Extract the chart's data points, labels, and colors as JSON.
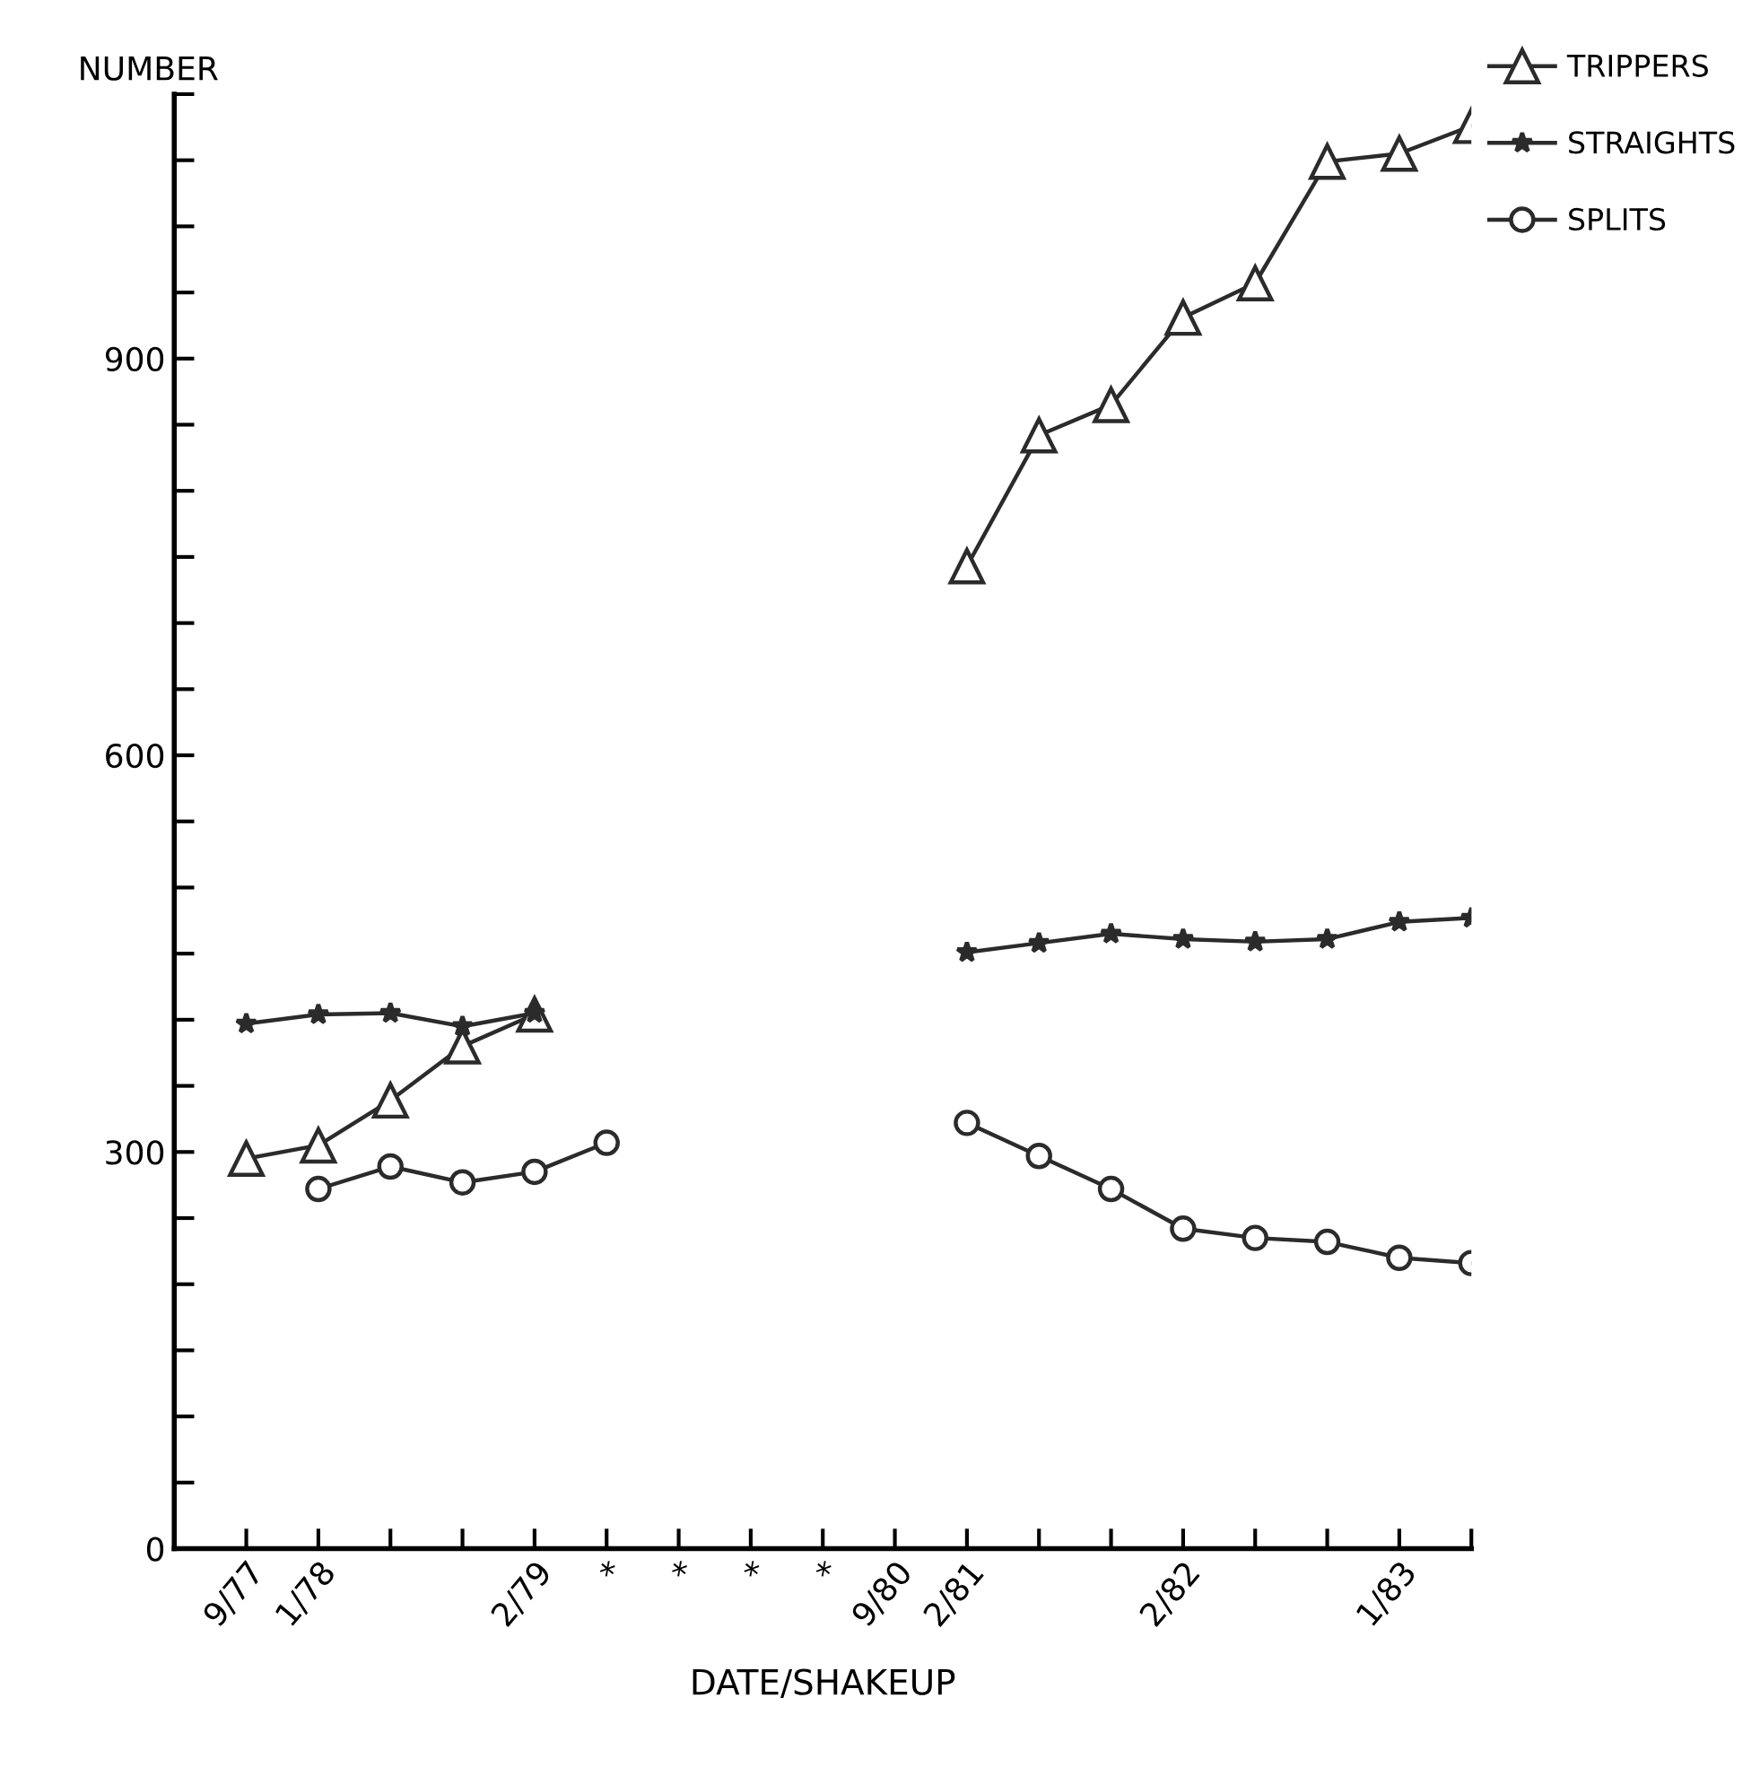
{
  "chart_data": {
    "type": "line",
    "xlabel": "DATE/SHAKEUP",
    "ylabel": "NUMBER",
    "categories": [
      "9/77",
      "1/78",
      null,
      null,
      "2/79",
      "*",
      "*",
      "*",
      "*",
      "9/80",
      "2/81",
      null,
      null,
      "2/82",
      null,
      null,
      "1/83",
      null
    ],
    "series": [
      {
        "name": "TRIPPERS",
        "color": "#2b2b2b",
        "marker": "triangle",
        "values": [
          295,
          305,
          339,
          380,
          404,
          null,
          null,
          null,
          null,
          null,
          743,
          842,
          865,
          931,
          957,
          1049,
          1055,
          1076
        ]
      },
      {
        "name": "STRAIGHTS",
        "color": "#2b2b2b",
        "marker": "star",
        "values": [
          397,
          404,
          405,
          395,
          405,
          null,
          null,
          null,
          null,
          null,
          451,
          458,
          465,
          461,
          459,
          461,
          474,
          477
        ]
      },
      {
        "name": "SPLITS",
        "color": "#2b2b2b",
        "marker": "circle",
        "values": [
          null,
          272,
          289,
          277,
          285,
          307,
          null,
          null,
          null,
          null,
          322,
          297,
          272,
          242,
          235,
          232,
          220,
          216
        ]
      }
    ],
    "ylim": [
      0,
      1100
    ],
    "yticks": [
      0,
      {
        "value": 50,
        "label": null
      },
      {
        "value": 100,
        "label": null
      },
      {
        "value": 150,
        "label": null
      },
      {
        "value": 200,
        "label": null
      },
      {
        "value": 250,
        "label": null
      },
      300,
      {
        "value": 350,
        "label": null
      },
      {
        "value": 400,
        "label": null
      },
      {
        "value": 450,
        "label": null
      },
      {
        "value": 500,
        "label": null
      },
      {
        "value": 550,
        "label": null
      },
      600,
      {
        "value": 650,
        "label": null
      },
      {
        "value": 700,
        "label": null
      },
      {
        "value": 750,
        "label": null
      },
      {
        "value": 800,
        "label": null
      },
      {
        "value": 850,
        "label": null
      },
      900,
      {
        "value": 950,
        "label": null
      },
      {
        "value": 1000,
        "label": null
      },
      {
        "value": 1050,
        "label": null
      },
      {
        "value": 1100,
        "label": null
      }
    ],
    "grid": false,
    "legend": "top right",
    "line_style": "solid"
  }
}
